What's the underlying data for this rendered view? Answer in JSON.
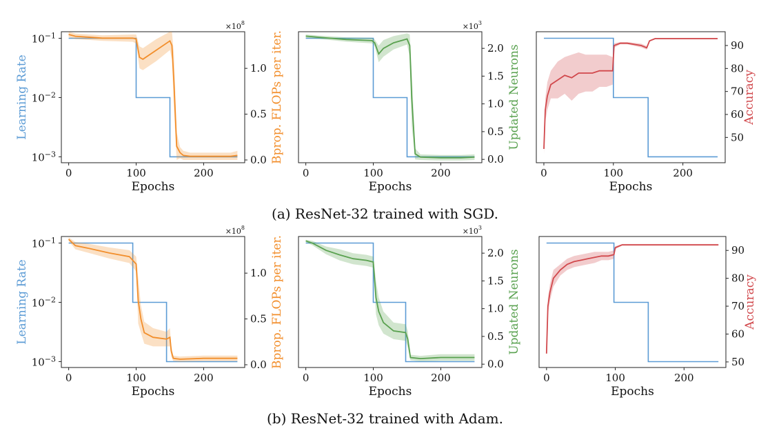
{
  "captions": [
    "(a) ResNet-32 trained with SGD.",
    "(b) ResNet-32 trained with Adam."
  ],
  "colors": {
    "lr": "#5b9bd5",
    "flops": "#f28e2b",
    "neurons": "#59a14f",
    "acc": "#d1484c"
  },
  "chart_data": [
    {
      "type": "line",
      "row": 0,
      "panel": "flops",
      "xlabel": "Epochs",
      "ylabel_left": "Learning Rate",
      "ylabel_right": "Bprop. FLOPs per iter.",
      "xlim": [
        0,
        250
      ],
      "xticks": [
        0,
        100,
        200
      ],
      "ylim_left": [
        0.001,
        0.1
      ],
      "yscale_left": "log",
      "yticks_left": [
        {
          "v": 0.1,
          "label": "10",
          "exp": "−1"
        },
        {
          "v": 0.01,
          "label": "10",
          "exp": "−2"
        },
        {
          "v": 0.001,
          "label": "10",
          "exp": "−3"
        }
      ],
      "ylim_right": [
        -0.03,
        1.4
      ],
      "yticks_right": [
        0.0,
        0.5,
        1.0
      ],
      "right_multiplier": "×10",
      "right_multiplier_exp": "8",
      "series": [
        {
          "key": "lr",
          "x": [
            0,
            100,
            100,
            150,
            150,
            250
          ],
          "y": [
            0.1,
            0.1,
            0.01,
            0.01,
            0.001,
            0.001
          ]
        },
        {
          "key": "flops",
          "x": [
            0,
            10,
            50,
            95,
            100,
            105,
            110,
            130,
            150,
            153,
            156,
            160,
            165,
            170,
            180,
            200,
            220,
            240,
            250
          ],
          "y": [
            1.37,
            1.35,
            1.33,
            1.33,
            1.32,
            1.12,
            1.1,
            1.2,
            1.3,
            1.25,
            0.85,
            0.15,
            0.08,
            0.05,
            0.04,
            0.04,
            0.04,
            0.04,
            0.05
          ],
          "band": [
            0.03,
            0.03,
            0.03,
            0.04,
            0.05,
            0.12,
            0.12,
            0.12,
            0.1,
            0.15,
            0.3,
            0.15,
            0.06,
            0.05,
            0.04,
            0.04,
            0.04,
            0.04,
            0.05
          ]
        }
      ]
    },
    {
      "type": "line",
      "row": 0,
      "panel": "neurons",
      "xlabel": "Epochs",
      "ylabel_right": "Updated Neurons",
      "xlim": [
        0,
        250
      ],
      "xticks": [
        0,
        100,
        200
      ],
      "ylim_left": [
        0.001,
        0.1
      ],
      "yscale_left": "log",
      "ylim_right": [
        -0.06,
        2.3
      ],
      "yticks_right": [
        0.0,
        0.5,
        1.0,
        1.5,
        2.0
      ],
      "right_multiplier": "×10",
      "right_multiplier_exp": "3",
      "series": [
        {
          "key": "lr",
          "x": [
            0,
            100,
            100,
            150,
            150,
            250
          ],
          "y": [
            0.1,
            0.1,
            0.01,
            0.01,
            0.001,
            0.001
          ]
        },
        {
          "key": "neurons",
          "x": [
            0,
            20,
            60,
            98,
            102,
            108,
            115,
            130,
            150,
            154,
            157,
            162,
            170,
            200,
            230,
            250
          ],
          "y": [
            2.22,
            2.2,
            2.16,
            2.14,
            2.1,
            1.9,
            2.0,
            2.1,
            2.17,
            2.05,
            1.1,
            0.1,
            0.04,
            0.03,
            0.03,
            0.04
          ],
          "band": [
            0.03,
            0.03,
            0.04,
            0.05,
            0.06,
            0.15,
            0.15,
            0.12,
            0.1,
            0.2,
            0.5,
            0.1,
            0.05,
            0.05,
            0.05,
            0.05
          ]
        }
      ]
    },
    {
      "type": "line",
      "row": 0,
      "panel": "accuracy",
      "xlabel": "Epochs",
      "ylabel_right": "Accuracy",
      "xlim": [
        0,
        250
      ],
      "xticks": [
        0,
        100,
        200
      ],
      "ylim_left": [
        0.001,
        0.1
      ],
      "yscale_left": "log",
      "ylim_right": [
        39,
        96
      ],
      "yticks_right": [
        50,
        60,
        70,
        80,
        90
      ],
      "series": [
        {
          "key": "lr",
          "x": [
            0,
            100,
            100,
            150,
            150,
            250
          ],
          "y": [
            0.1,
            0.1,
            0.01,
            0.01,
            0.001,
            0.001
          ]
        },
        {
          "key": "acc",
          "x": [
            0,
            2,
            5,
            10,
            20,
            30,
            40,
            50,
            60,
            70,
            80,
            90,
            99,
            101,
            110,
            120,
            140,
            148,
            152,
            160,
            200,
            250
          ],
          "y": [
            45,
            62,
            68,
            73,
            75,
            77,
            76,
            78,
            78,
            78,
            79,
            79,
            79,
            90,
            91,
            91,
            90,
            89,
            92,
            93,
            93,
            93
          ],
          "band": [
            2,
            5,
            6,
            6,
            8,
            8,
            10,
            9,
            8,
            8,
            7,
            7,
            6,
            1,
            0.5,
            0.5,
            0.8,
            0.8,
            0.3,
            0.3,
            0.3,
            0.3
          ]
        }
      ]
    },
    {
      "type": "line",
      "row": 1,
      "panel": "flops",
      "xlabel": "Epochs",
      "ylabel_left": "Learning Rate",
      "ylabel_right": "Bprop. FLOPs per iter.",
      "xlim": [
        0,
        250
      ],
      "xticks": [
        0,
        100,
        200
      ],
      "ylim_left": [
        0.001,
        0.1
      ],
      "yscale_left": "log",
      "yticks_left": [
        {
          "v": 0.1,
          "label": "10",
          "exp": "−1"
        },
        {
          "v": 0.01,
          "label": "10",
          "exp": "−2"
        },
        {
          "v": 0.001,
          "label": "10",
          "exp": "−3"
        }
      ],
      "ylim_right": [
        -0.03,
        1.4
      ],
      "yticks_right": [
        0.0,
        0.5,
        1.0
      ],
      "right_multiplier": "×10",
      "right_multiplier_exp": "8",
      "series": [
        {
          "key": "lr",
          "x": [
            0,
            95,
            95,
            145,
            145,
            250
          ],
          "y": [
            0.1,
            0.1,
            0.01,
            0.01,
            0.001,
            0.001
          ]
        },
        {
          "key": "flops",
          "x": [
            0,
            10,
            30,
            60,
            90,
            100,
            103,
            107,
            112,
            125,
            145,
            150,
            152,
            155,
            165,
            200,
            250
          ],
          "y": [
            1.37,
            1.3,
            1.27,
            1.22,
            1.18,
            1.1,
            0.7,
            0.5,
            0.35,
            0.3,
            0.28,
            0.3,
            0.15,
            0.07,
            0.06,
            0.07,
            0.07
          ],
          "band": [
            0.02,
            0.04,
            0.05,
            0.06,
            0.07,
            0.08,
            0.25,
            0.15,
            0.12,
            0.1,
            0.08,
            0.1,
            0.06,
            0.03,
            0.03,
            0.03,
            0.03
          ]
        }
      ]
    },
    {
      "type": "line",
      "row": 1,
      "panel": "neurons",
      "xlabel": "Epochs",
      "ylabel_right": "Updated Neurons",
      "xlim": [
        0,
        250
      ],
      "xticks": [
        0,
        100,
        200
      ],
      "ylim_left": [
        0.001,
        0.1
      ],
      "yscale_left": "log",
      "ylim_right": [
        -0.06,
        2.3
      ],
      "yticks_right": [
        0.0,
        0.5,
        1.0,
        1.5,
        2.0
      ],
      "right_multiplier": "×10",
      "right_multiplier_exp": "3",
      "series": [
        {
          "key": "lr",
          "x": [
            0,
            100,
            100,
            148,
            148,
            250
          ],
          "y": [
            0.1,
            0.1,
            0.01,
            0.01,
            0.001,
            0.001
          ]
        },
        {
          "key": "neurons",
          "x": [
            0,
            10,
            30,
            50,
            70,
            90,
            100,
            104,
            108,
            115,
            130,
            148,
            151,
            155,
            170,
            200,
            250
          ],
          "y": [
            2.22,
            2.18,
            2.05,
            1.97,
            1.9,
            1.87,
            1.84,
            1.2,
            0.95,
            0.75,
            0.6,
            0.57,
            0.45,
            0.12,
            0.1,
            0.12,
            0.12
          ],
          "band": [
            0.02,
            0.04,
            0.07,
            0.1,
            0.1,
            0.1,
            0.1,
            0.3,
            0.25,
            0.2,
            0.15,
            0.15,
            0.15,
            0.05,
            0.05,
            0.06,
            0.06
          ]
        }
      ]
    },
    {
      "type": "line",
      "row": 1,
      "panel": "accuracy",
      "xlabel": "Epochs",
      "ylabel_right": "Accuracy",
      "xlim": [
        0,
        250
      ],
      "xticks": [
        0,
        100,
        200
      ],
      "ylim_left": [
        0.001,
        0.1
      ],
      "yscale_left": "log",
      "ylim_right": [
        48,
        95
      ],
      "yticks_right": [
        50,
        60,
        70,
        80,
        90
      ],
      "series": [
        {
          "key": "lr",
          "x": [
            0,
            98,
            98,
            148,
            148,
            250
          ],
          "y": [
            0.1,
            0.1,
            0.01,
            0.01,
            0.001,
            0.001
          ]
        },
        {
          "key": "acc",
          "x": [
            0,
            2,
            5,
            10,
            20,
            30,
            40,
            50,
            60,
            70,
            80,
            90,
            98,
            100,
            110,
            150,
            200,
            250
          ],
          "y": [
            53,
            70,
            75,
            80,
            83,
            85,
            86,
            86.5,
            87,
            87.5,
            88,
            88,
            88.5,
            91,
            92,
            92,
            92,
            92
          ],
          "band": [
            1,
            3,
            3,
            3,
            2,
            2,
            2,
            2,
            2,
            2,
            1.5,
            1.5,
            1.5,
            0.5,
            0.3,
            0.3,
            0.3,
            0.3
          ]
        }
      ]
    }
  ]
}
